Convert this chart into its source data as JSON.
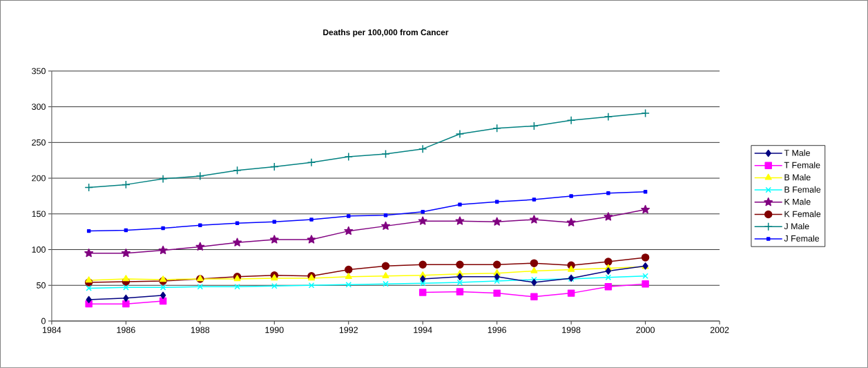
{
  "chart_data": {
    "type": "line",
    "title": "**Deaths per 100,000 from Cancer**",
    "x": [
      1985,
      1986,
      1987,
      1988,
      1989,
      1990,
      1991,
      1992,
      1993,
      1994,
      1995,
      1996,
      1997,
      1998,
      1999,
      2000
    ],
    "xlim": [
      1984,
      2002
    ],
    "xticks": [
      1984,
      1986,
      1988,
      1990,
      1992,
      1994,
      1996,
      1998,
      2000,
      2002
    ],
    "ylim": [
      0,
      350
    ],
    "yticks": [
      0,
      50,
      100,
      150,
      200,
      250,
      300,
      350
    ],
    "grid": "y",
    "legend": "right",
    "series": [
      {
        "name": "T Male",
        "color": "#000080",
        "marker": "diamond",
        "values": [
          30,
          32,
          36,
          null,
          null,
          null,
          null,
          null,
          null,
          59,
          62,
          62,
          54,
          60,
          70,
          77
        ]
      },
      {
        "name": "T Female",
        "color": "#ff00ff",
        "marker": "square",
        "values": [
          24,
          24,
          28,
          null,
          null,
          null,
          null,
          null,
          null,
          40,
          41,
          39,
          34,
          39,
          48,
          52
        ]
      },
      {
        "name": "B Male",
        "color": "#ffff00",
        "marker": "triangle",
        "values": [
          57,
          59,
          58,
          59,
          59,
          60,
          60,
          62,
          63,
          64,
          66,
          67,
          70,
          72,
          74,
          76
        ]
      },
      {
        "name": "B Female",
        "color": "#00ffff",
        "marker": "cross",
        "values": [
          46,
          47,
          47,
          48,
          48,
          49,
          50,
          51,
          52,
          53,
          54,
          56,
          58,
          59,
          61,
          63
        ]
      },
      {
        "name": "K Male",
        "color": "#800080",
        "marker": "star",
        "values": [
          95,
          95,
          99,
          104,
          110,
          114,
          114,
          126,
          133,
          140,
          140,
          139,
          142,
          138,
          146,
          156
        ]
      },
      {
        "name": "K Female",
        "color": "#800000",
        "marker": "circle",
        "values": [
          54,
          55,
          56,
          59,
          62,
          64,
          63,
          72,
          77,
          79,
          79,
          79,
          81,
          78,
          83,
          89
        ]
      },
      {
        "name": "J Male",
        "color": "#008080",
        "marker": "plus",
        "values": [
          187,
          191,
          199,
          203,
          211,
          216,
          222,
          230,
          234,
          241,
          262,
          270,
          273,
          281,
          286,
          291
        ]
      },
      {
        "name": "J Female",
        "color": "#0000ff",
        "marker": "square",
        "values": [
          126,
          127,
          130,
          134,
          137,
          139,
          142,
          147,
          148,
          153,
          163,
          167,
          170,
          175,
          179,
          181
        ]
      }
    ]
  }
}
